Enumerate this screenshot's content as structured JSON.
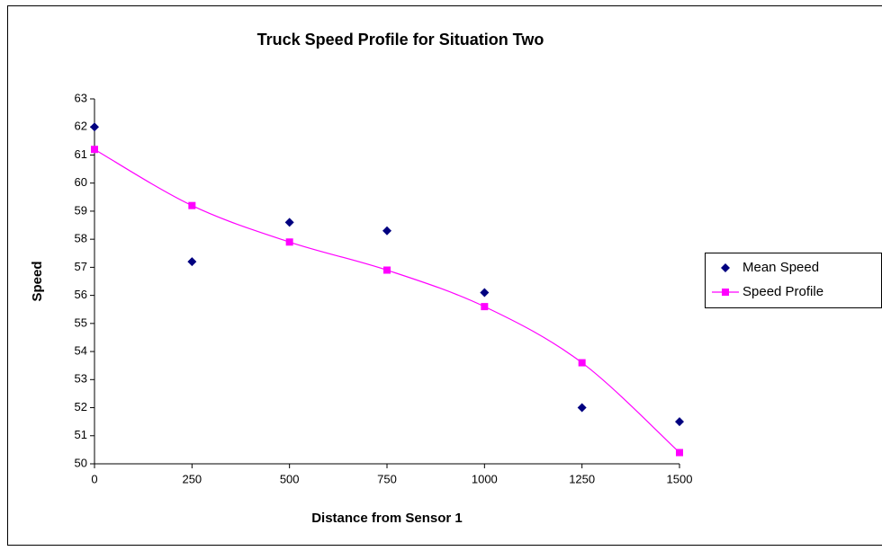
{
  "chart_data": {
    "type": "scatter",
    "title": "Truck Speed Profile for Situation Two",
    "x_label": "Distance from Sensor 1",
    "y_label": "Speed",
    "x": [
      0,
      250,
      500,
      750,
      1000,
      1250,
      1500
    ],
    "series": [
      {
        "name": "Mean Speed",
        "color": "#000080",
        "style": "markers",
        "values": [
          62,
          57.2,
          58.6,
          58.3,
          56.1,
          52,
          51.5
        ]
      },
      {
        "name": "Speed Profile",
        "color": "#ff00ff",
        "style": "line",
        "values": [
          61.2,
          59.2,
          57.9,
          56.9,
          55.6,
          53.6,
          50.4
        ]
      }
    ],
    "xlim": [
      0,
      1500
    ],
    "xticks": [
      0,
      250,
      500,
      750,
      1000,
      1250,
      1500
    ],
    "ylim": [
      50,
      63
    ],
    "yticks": [
      50,
      51,
      52,
      53,
      54,
      55,
      56,
      57,
      58,
      59,
      60,
      61,
      62,
      63
    ],
    "grid": false,
    "legend": "right"
  }
}
